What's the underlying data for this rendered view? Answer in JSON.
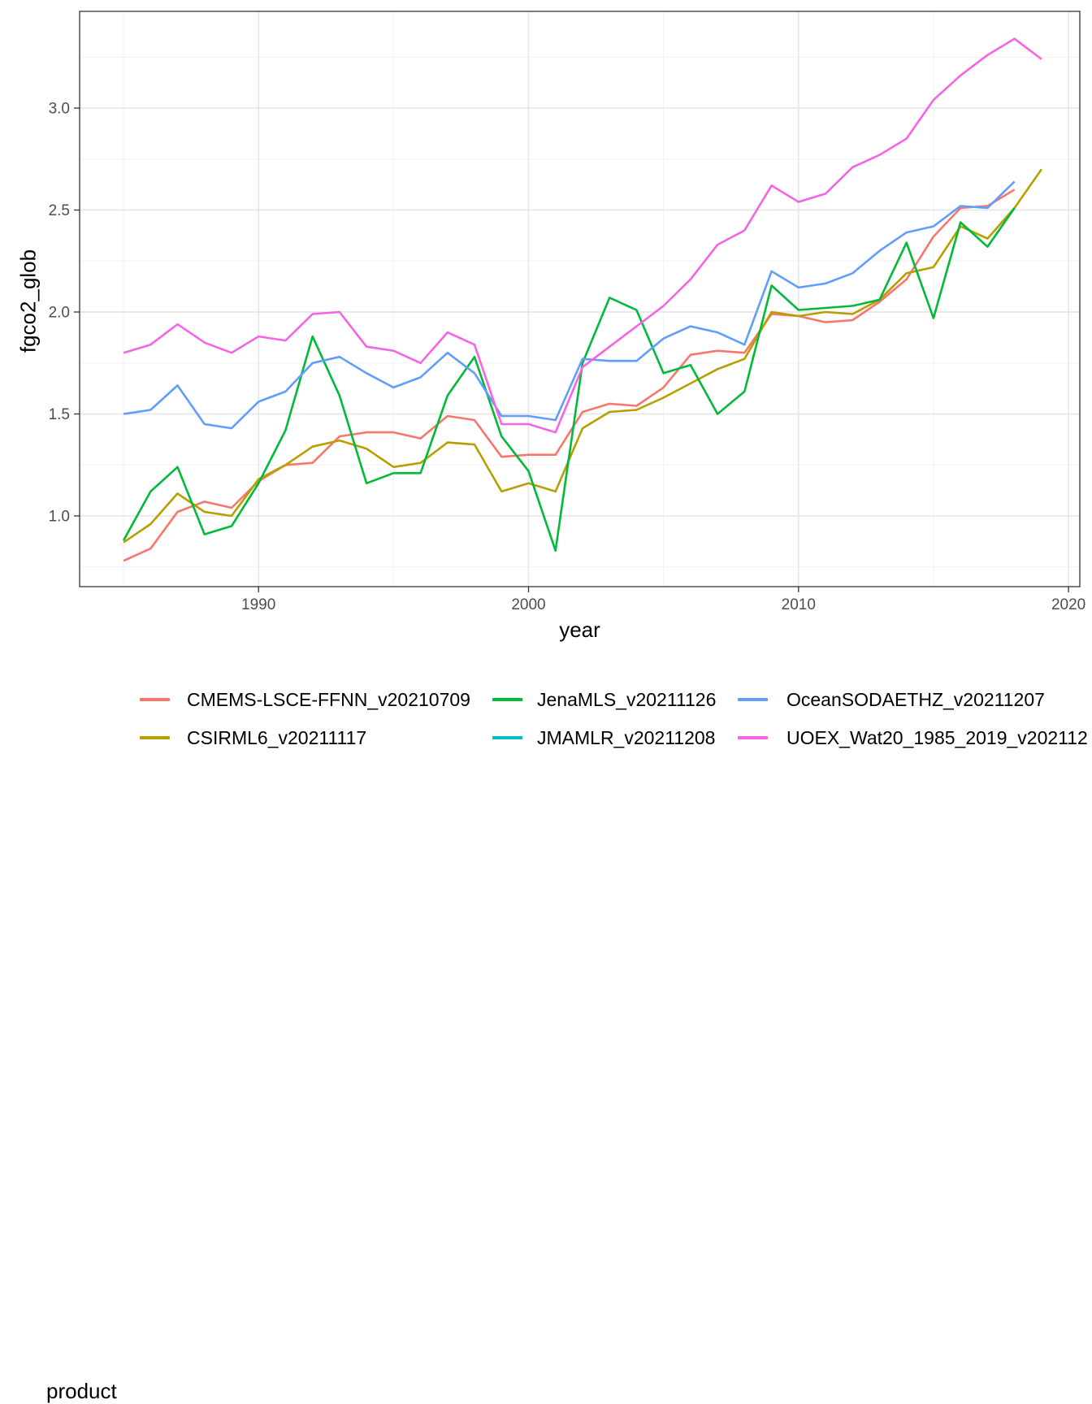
{
  "figure": {
    "background": "#ffffff"
  },
  "axes": {
    "x": {
      "title": "year",
      "tick_labels": [
        "1990",
        "2000",
        "2010",
        "2020"
      ],
      "tick_values": [
        1990,
        2000,
        2010,
        2020
      ]
    },
    "y": {
      "title": "fgco2_glob",
      "tick_labels": [
        "1.0",
        "1.5",
        "2.0",
        "2.5",
        "3.0"
      ],
      "tick_values": [
        1.0,
        1.5,
        2.0,
        2.5,
        3.0
      ]
    }
  },
  "legend": {
    "title": "product",
    "items": [
      {
        "label": "CMEMS-LSCE-FFNN_v20210709",
        "color": "#F8766D"
      },
      {
        "label": "CSIRML6_v20211117",
        "color": "#B79F00"
      },
      {
        "label": "JenaMLS_v20211126",
        "color": "#00BA38"
      },
      {
        "label": "JMAMLR_v20211208",
        "color": "#00BFC4"
      },
      {
        "label": "OceanSODAETHZ_v20211207",
        "color": "#619CFF"
      },
      {
        "label": "UOEX_Wat20_1985_2019_v202112",
        "color": "#F564E3",
        "label_truncated_at_right_edge": true
      }
    ]
  },
  "chart_data": {
    "type": "line",
    "title": "",
    "xlabel": "year",
    "ylabel": "fgco2_glob",
    "xlim": [
      1983.4,
      2020.4
    ],
    "ylim": [
      0.65,
      3.47
    ],
    "grid": "major+minor",
    "legend_position": "bottom",
    "x": [
      1985,
      1986,
      1987,
      1988,
      1989,
      1990,
      1991,
      1992,
      1993,
      1994,
      1995,
      1996,
      1997,
      1998,
      1999,
      2000,
      2001,
      2002,
      2003,
      2004,
      2005,
      2006,
      2007,
      2008,
      2009,
      2010,
      2011,
      2012,
      2013,
      2014,
      2015,
      2016,
      2017,
      2018,
      2019
    ],
    "series": [
      {
        "name": "CMEMS-LSCE-FFNN_v20210709",
        "color": "#F8766D",
        "values": [
          0.78,
          0.84,
          1.02,
          1.07,
          1.04,
          1.17,
          1.25,
          1.26,
          1.39,
          1.41,
          1.41,
          1.38,
          1.49,
          1.47,
          1.29,
          1.3,
          1.3,
          1.51,
          1.55,
          1.54,
          1.63,
          1.79,
          1.81,
          1.8,
          1.99,
          1.98,
          1.95,
          1.96,
          2.05,
          2.16,
          2.37,
          2.51,
          2.52,
          2.6,
          null
        ]
      },
      {
        "name": "CSIRML6_v20211117",
        "color": "#B79F00",
        "values": [
          0.87,
          0.96,
          1.11,
          1.02,
          1.0,
          1.18,
          1.25,
          1.34,
          1.37,
          1.33,
          1.24,
          1.26,
          1.36,
          1.35,
          1.12,
          1.16,
          1.12,
          1.43,
          1.51,
          1.52,
          1.58,
          1.65,
          1.72,
          1.77,
          2.0,
          1.98,
          2.0,
          1.99,
          2.06,
          2.19,
          2.22,
          2.42,
          2.36,
          2.51,
          2.7
        ]
      },
      {
        "name": "JenaMLS_v20211126",
        "color": "#00BA38",
        "values": [
          0.88,
          1.12,
          1.24,
          0.91,
          0.95,
          1.16,
          1.42,
          1.88,
          1.59,
          1.16,
          1.21,
          1.21,
          1.59,
          1.78,
          1.39,
          1.22,
          0.83,
          1.75,
          2.07,
          2.01,
          1.7,
          1.74,
          1.5,
          1.61,
          2.13,
          2.01,
          2.02,
          2.03,
          2.06,
          2.34,
          1.97,
          2.44,
          2.32,
          2.51,
          null
        ]
      },
      {
        "name": "JMAMLR_v20211208",
        "color": "#00BFC4",
        "values": null,
        "note": "legend entry only; no line visible in the plot"
      },
      {
        "name": "OceanSODAETHZ_v20211207",
        "color": "#619CFF",
        "values": [
          1.5,
          1.52,
          1.64,
          1.45,
          1.43,
          1.56,
          1.61,
          1.75,
          1.78,
          1.7,
          1.63,
          1.68,
          1.8,
          1.7,
          1.49,
          1.49,
          1.47,
          1.77,
          1.76,
          1.76,
          1.87,
          1.93,
          1.9,
          1.84,
          2.2,
          2.12,
          2.14,
          2.19,
          2.3,
          2.39,
          2.42,
          2.52,
          2.51,
          2.64,
          null
        ]
      },
      {
        "name": "UOEX_Wat20_1985_2019_v202112",
        "color": "#F564E3",
        "values": [
          1.8,
          1.84,
          1.94,
          1.85,
          1.8,
          1.88,
          1.86,
          1.99,
          2.0,
          1.83,
          1.81,
          1.75,
          1.9,
          1.84,
          1.45,
          1.45,
          1.41,
          1.73,
          1.83,
          1.93,
          2.03,
          2.16,
          2.33,
          2.4,
          2.62,
          2.54,
          2.58,
          2.71,
          2.77,
          2.85,
          3.04,
          3.16,
          3.26,
          3.34,
          3.24
        ]
      }
    ]
  }
}
